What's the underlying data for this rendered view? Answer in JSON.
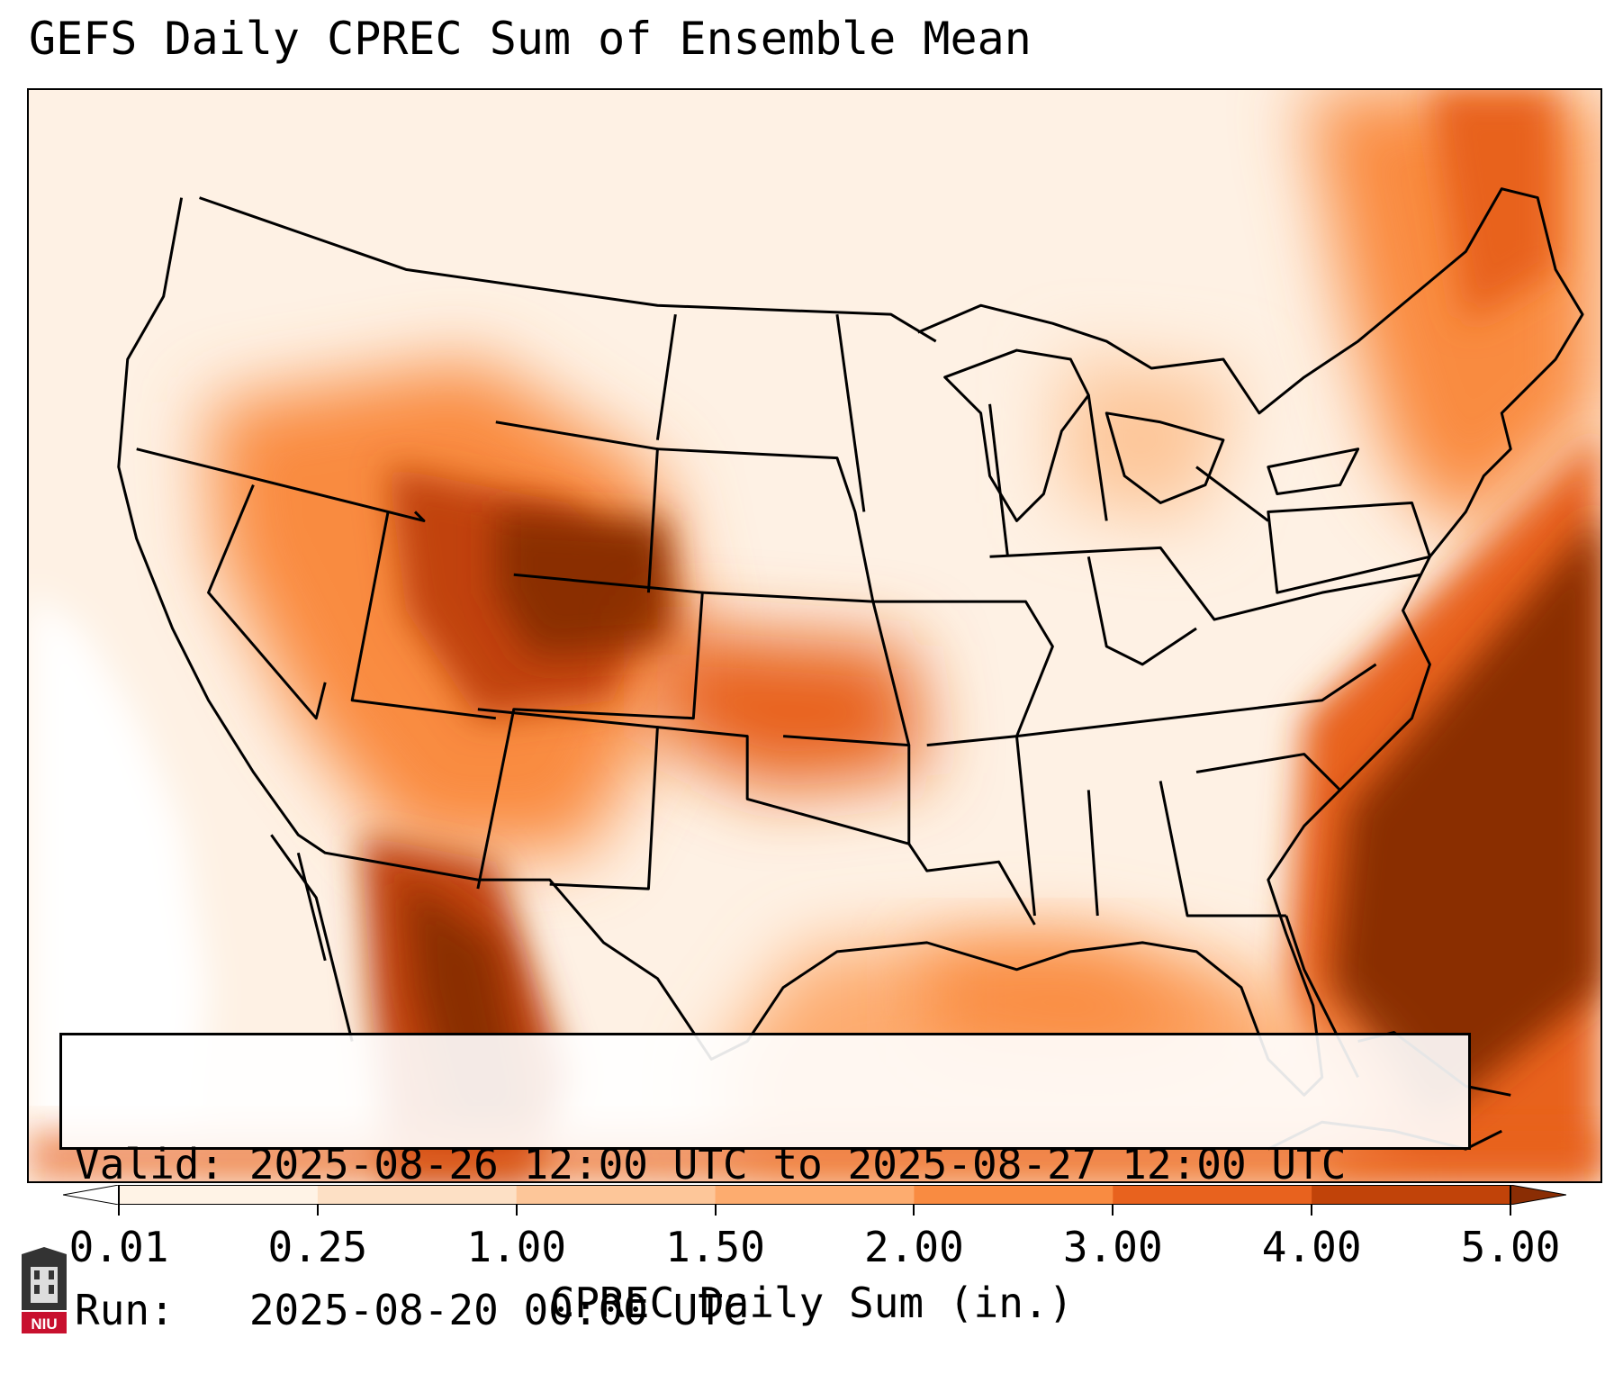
{
  "title": "GEFS Daily CPREC Sum of Ensemble Mean",
  "info": {
    "valid": "Valid: 2025-08-26 12:00 UTC to 2025-08-27 12:00 UTC",
    "run": "Run:   2025-08-20 00:00 UTC"
  },
  "colorbar": {
    "label": "CPREC Daily Sum (in.)",
    "ticks": [
      "0.01",
      "0.25",
      "1.00",
      "1.50",
      "2.00",
      "3.00",
      "4.00",
      "5.00"
    ],
    "colors": [
      "#fff3e6",
      "#fde0c5",
      "#fdc699",
      "#fdac6f",
      "#f98b41",
      "#e8621e",
      "#c14309",
      "#8a2d04"
    ]
  },
  "logo": {
    "text": "NIU",
    "icon": "niu-shield-icon"
  }
}
